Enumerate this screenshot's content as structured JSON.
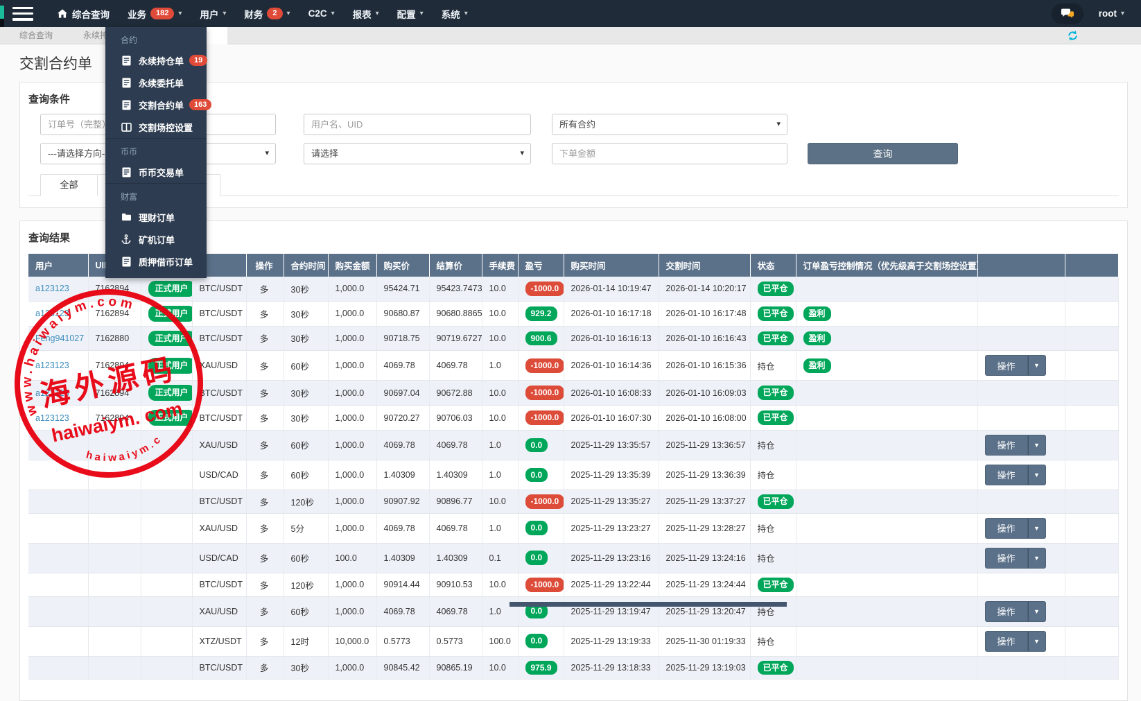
{
  "navbar": {
    "items": [
      {
        "label": "综合查询",
        "icon": "home",
        "caret": false
      },
      {
        "label": "业务",
        "badge": "182",
        "caret": true
      },
      {
        "label": "用户",
        "caret": true
      },
      {
        "label": "财务",
        "badge": "2",
        "caret": true
      },
      {
        "label": "C2C",
        "caret": true
      },
      {
        "label": "报表",
        "caret": true
      },
      {
        "label": "配置",
        "caret": true
      },
      {
        "label": "系统",
        "caret": true
      }
    ],
    "user": "root"
  },
  "menu": {
    "sections": [
      {
        "title": "合约",
        "items": [
          {
            "label": "永续持仓单",
            "badge": "19",
            "icon": "document-icon"
          },
          {
            "label": "永续委托单",
            "icon": "document-icon"
          },
          {
            "label": "交割合约单",
            "badge": "163",
            "icon": "document-icon"
          },
          {
            "label": "交割场控设置",
            "icon": "columns-icon"
          }
        ]
      },
      {
        "title": "币币",
        "items": [
          {
            "label": "币币交易单",
            "icon": "document-icon"
          }
        ]
      },
      {
        "title": "财富",
        "items": [
          {
            "label": "理财订单",
            "icon": "folder-icon"
          },
          {
            "label": "矿机订单",
            "icon": "anchor-icon"
          },
          {
            "label": "质押借币订单",
            "icon": "document-icon"
          }
        ]
      }
    ]
  },
  "tabs": [
    "综合查询",
    "永续持仓"
  ],
  "page_title": "交割合约单",
  "query": {
    "title": "查询条件",
    "order_no_placeholder": "订单号（完整）",
    "user_placeholder": "用户名、UID",
    "contract_select": "所有合约",
    "direction_select": "---请选择方向---",
    "select_placeholder": "请选择",
    "amount_placeholder": "下单金额",
    "search_button": "查询",
    "tab_all": "全部"
  },
  "results": {
    "title": "查询结果",
    "action_label": "操作",
    "headers": [
      "用户",
      "UID",
      "",
      "",
      "操作",
      "合约时间",
      "购买金额",
      "购买价",
      "结算价",
      "手续费",
      "盈亏",
      "购买时间",
      "交割时间",
      "状态",
      "订单盈亏控制情况（优先级高于交割场控设置）",
      "",
      ""
    ],
    "rows": [
      {
        "user": "a123123",
        "uid": "7162894",
        "type": "正式用户",
        "contract": "BTC/USDT",
        "dir": "多",
        "period": "30秒",
        "amount": "1,000.0",
        "buy_price": "95424.71",
        "settle_price": "95423.7473",
        "fee": "10.0",
        "pnl": "-1000.0",
        "buy_time": "2026-01-14 10:19:47",
        "settle_time": "2026-01-14 10:20:17",
        "status": "已平仓",
        "control": "",
        "action": false
      },
      {
        "user": "a123123",
        "uid": "7162894",
        "type": "正式用户",
        "contract": "BTC/USDT",
        "dir": "多",
        "period": "30秒",
        "amount": "1,000.0",
        "buy_price": "90680.87",
        "settle_price": "90680.8865",
        "fee": "10.0",
        "pnl": "929.2",
        "buy_time": "2026-01-10 16:17:18",
        "settle_time": "2026-01-10 16:17:48",
        "status": "已平仓",
        "control": "盈利",
        "action": false
      },
      {
        "user": "Feng941027",
        "uid": "7162880",
        "type": "正式用户",
        "contract": "BTC/USDT",
        "dir": "多",
        "period": "30秒",
        "amount": "1,000.0",
        "buy_price": "90718.75",
        "settle_price": "90719.6727",
        "fee": "10.0",
        "pnl": "900.6",
        "buy_time": "2026-01-10 16:16:13",
        "settle_time": "2026-01-10 16:16:43",
        "status": "已平仓",
        "control": "盈利",
        "action": false
      },
      {
        "user": "a123123",
        "uid": "7162894",
        "type": "正式用户",
        "contract": "XAU/USD",
        "dir": "多",
        "period": "60秒",
        "amount": "1,000.0",
        "buy_price": "4069.78",
        "settle_price": "4069.78",
        "fee": "1.0",
        "pnl": "-1000.0",
        "buy_time": "2026-01-10 16:14:36",
        "settle_time": "2026-01-10 16:15:36",
        "status": "持仓",
        "control": "盈利",
        "action": true
      },
      {
        "user": "a123123",
        "uid": "7162894",
        "type": "正式用户",
        "contract": "BTC/USDT",
        "dir": "多",
        "period": "30秒",
        "amount": "1,000.0",
        "buy_price": "90697.04",
        "settle_price": "90672.88",
        "fee": "10.0",
        "pnl": "-1000.0",
        "buy_time": "2026-01-10 16:08:33",
        "settle_time": "2026-01-10 16:09:03",
        "status": "已平仓",
        "control": "",
        "action": false
      },
      {
        "user": "a123123",
        "uid": "7162894",
        "type": "正式用户",
        "contract": "BTC/USDT",
        "dir": "多",
        "period": "30秒",
        "amount": "1,000.0",
        "buy_price": "90720.27",
        "settle_price": "90706.03",
        "fee": "10.0",
        "pnl": "-1000.0",
        "buy_time": "2026-01-10 16:07:30",
        "settle_time": "2026-01-10 16:08:00",
        "status": "已平仓",
        "control": "",
        "action": false
      },
      {
        "user": "",
        "uid": "",
        "type": "",
        "contract": "XAU/USD",
        "dir": "多",
        "period": "60秒",
        "amount": "1,000.0",
        "buy_price": "4069.78",
        "settle_price": "4069.78",
        "fee": "1.0",
        "pnl": "0.0",
        "buy_time": "2025-11-29 13:35:57",
        "settle_time": "2025-11-29 13:36:57",
        "status": "持仓",
        "control": "",
        "action": true
      },
      {
        "user": "",
        "uid": "",
        "type": "",
        "contract": "USD/CAD",
        "dir": "多",
        "period": "60秒",
        "amount": "1,000.0",
        "buy_price": "1.40309",
        "settle_price": "1.40309",
        "fee": "1.0",
        "pnl": "0.0",
        "buy_time": "2025-11-29 13:35:39",
        "settle_time": "2025-11-29 13:36:39",
        "status": "持仓",
        "control": "",
        "action": true
      },
      {
        "user": "",
        "uid": "",
        "type": "",
        "contract": "BTC/USDT",
        "dir": "多",
        "period": "120秒",
        "amount": "1,000.0",
        "buy_price": "90907.92",
        "settle_price": "90896.77",
        "fee": "10.0",
        "pnl": "-1000.0",
        "buy_time": "2025-11-29 13:35:27",
        "settle_time": "2025-11-29 13:37:27",
        "status": "已平仓",
        "control": "",
        "action": false
      },
      {
        "user": "",
        "uid": "",
        "type": "",
        "contract": "XAU/USD",
        "dir": "多",
        "period": "5分",
        "amount": "1,000.0",
        "buy_price": "4069.78",
        "settle_price": "4069.78",
        "fee": "1.0",
        "pnl": "0.0",
        "buy_time": "2025-11-29 13:23:27",
        "settle_time": "2025-11-29 13:28:27",
        "status": "持仓",
        "control": "",
        "action": true
      },
      {
        "user": "",
        "uid": "",
        "type": "",
        "contract": "USD/CAD",
        "dir": "多",
        "period": "60秒",
        "amount": "100.0",
        "buy_price": "1.40309",
        "settle_price": "1.40309",
        "fee": "0.1",
        "pnl": "0.0",
        "buy_time": "2025-11-29 13:23:16",
        "settle_time": "2025-11-29 13:24:16",
        "status": "持仓",
        "control": "",
        "action": true
      },
      {
        "user": "",
        "uid": "",
        "type": "",
        "contract": "BTC/USDT",
        "dir": "多",
        "period": "120秒",
        "amount": "1,000.0",
        "buy_price": "90914.44",
        "settle_price": "90910.53",
        "fee": "10.0",
        "pnl": "-1000.0",
        "buy_time": "2025-11-29 13:22:44",
        "settle_time": "2025-11-29 13:24:44",
        "status": "已平仓",
        "control": "",
        "action": false
      },
      {
        "user": "",
        "uid": "",
        "type": "",
        "contract": "XAU/USD",
        "dir": "多",
        "period": "60秒",
        "amount": "1,000.0",
        "buy_price": "4069.78",
        "settle_price": "4069.78",
        "fee": "1.0",
        "pnl": "0.0",
        "buy_time": "2025-11-29 13:19:47",
        "settle_time": "2025-11-29 13:20:47",
        "status": "持仓",
        "control": "",
        "action": true
      },
      {
        "user": "",
        "uid": "",
        "type": "",
        "contract": "XTZ/USDT",
        "dir": "多",
        "period": "12时",
        "amount": "10,000.0",
        "buy_price": "0.5773",
        "settle_price": "0.5773",
        "fee": "100.0",
        "pnl": "0.0",
        "buy_time": "2025-11-29 13:19:33",
        "settle_time": "2025-11-30 01:19:33",
        "status": "持仓",
        "control": "",
        "action": true
      },
      {
        "user": "",
        "uid": "",
        "type": "",
        "contract": "BTC/USDT",
        "dir": "多",
        "period": "30秒",
        "amount": "1,000.0",
        "buy_price": "90845.42",
        "settle_price": "90865.19",
        "fee": "10.0",
        "pnl": "975.9",
        "buy_time": "2025-11-29 13:18:33",
        "settle_time": "2025-11-29 13:19:03",
        "status": "已平仓",
        "control": "",
        "action": false
      }
    ],
    "status_closed": "已平仓",
    "status_open": "持仓"
  },
  "watermark": {
    "top_arc": "www.haiwaiym.com",
    "center": "海外源码",
    "subtitle": "haiwaiym. com",
    "bottom_arc": "haiwaiym.com"
  },
  "colors": {
    "navbar": "#1f2b38",
    "menu": "#2d3c50",
    "table_header": "#5b7189",
    "green": "#00a65a",
    "red": "#dd4b39",
    "badge_red": "#e04a38",
    "link": "#3c8dbc",
    "watermark_red": "#e8000f"
  }
}
